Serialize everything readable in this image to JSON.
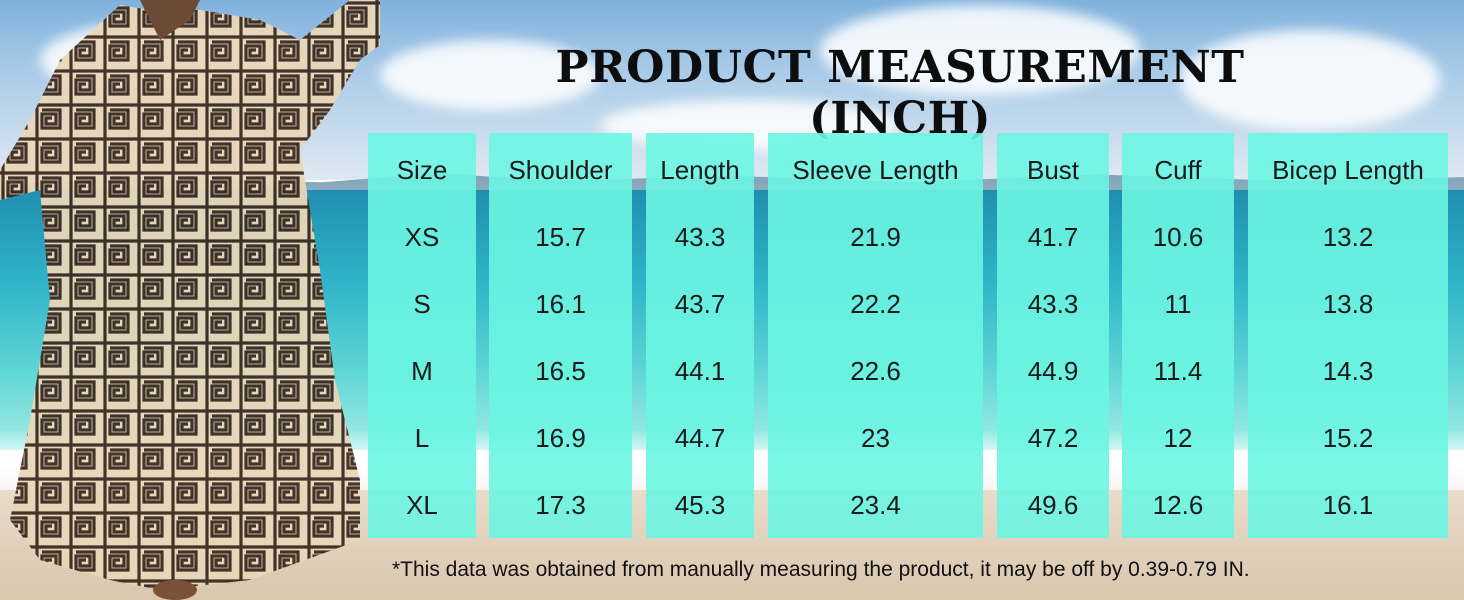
{
  "title": "PRODUCT MEASUREMENT (INCH)",
  "table": {
    "headers": [
      "Size",
      "Shoulder",
      "Length",
      "Sleeve Length",
      "Bust",
      "Cuff",
      "Bicep Length"
    ],
    "rows": [
      [
        "XS",
        "15.7",
        "43.3",
        "21.9",
        "41.7",
        "10.6",
        "13.2"
      ],
      [
        "S",
        "16.1",
        "43.7",
        "22.2",
        "43.3",
        "11",
        "13.8"
      ],
      [
        "M",
        "16.5",
        "44.1",
        "22.6",
        "44.9",
        "11.4",
        "14.3"
      ],
      [
        "L",
        "16.9",
        "44.7",
        "23",
        "47.2",
        "12",
        "15.2"
      ],
      [
        "XL",
        "17.3",
        "45.3",
        "23.4",
        "49.6",
        "12.6",
        "16.1"
      ]
    ]
  },
  "note": "*This data was obtained from manually measuring the product, it may be off by 0.39-0.79 IN.",
  "colors": {
    "column": "#6cf5e2",
    "text": "#1a1a1a"
  }
}
